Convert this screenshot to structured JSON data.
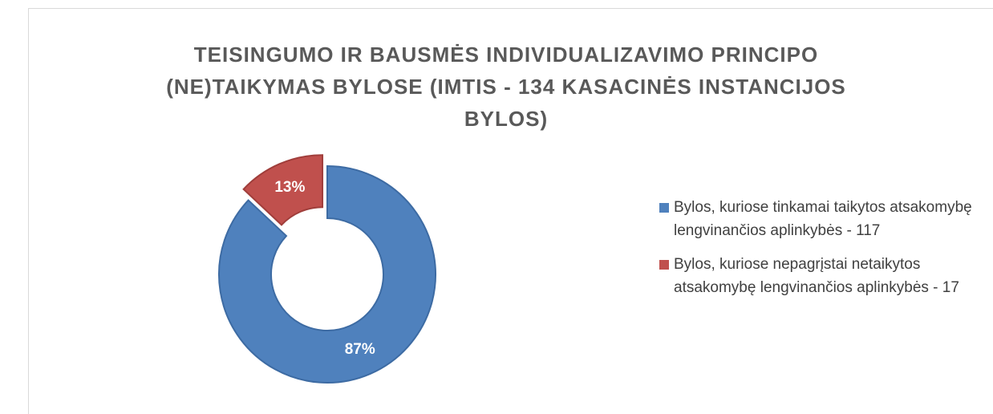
{
  "chart_data": {
    "type": "donut",
    "title": "TEISINGUMO IR BAUSMĖS INDIVIDUALIZAVIMO PRINCIPO (NE)TAIKYMAS BYLOSE (IMTIS - 134 KASACINĖS INSTANCIJOS BYLOS)",
    "categories": [
      "Bylos, kuriose tinkamai taikytos atsakomybę lengvinančios aplinkybės - 117",
      "Bylos, kuriose nepagrįstai netaikytos atsakomybę lengvinančios aplinkybės - 17"
    ],
    "values": [
      87,
      13
    ],
    "value_labels": [
      "87%",
      "13%"
    ],
    "colors": [
      "#4f81bd",
      "#c0504d"
    ],
    "legend": "right"
  }
}
